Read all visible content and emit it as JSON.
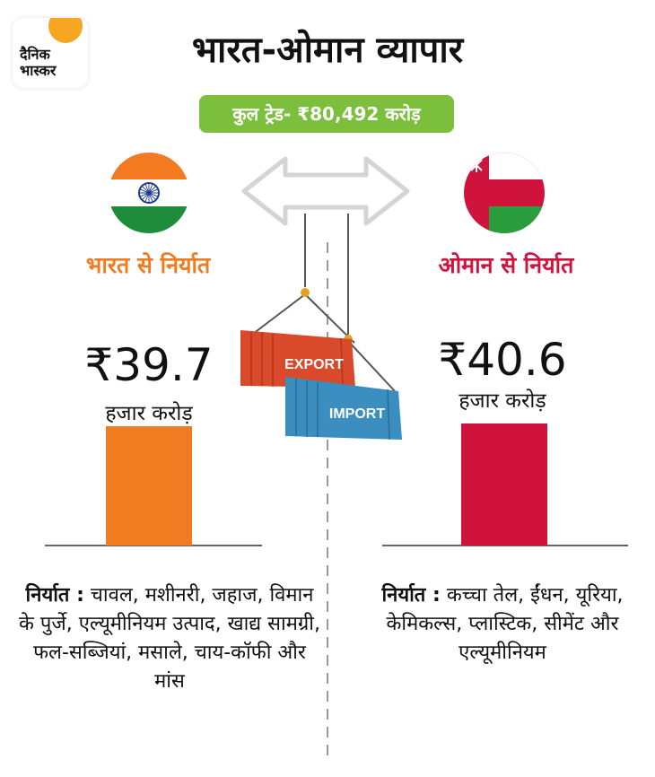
{
  "logo": {
    "text": "दैनिक\nभास्कर"
  },
  "header": {
    "title": "भारत-ओमान व्यापार"
  },
  "badge": {
    "text": "कुल ट्रेड- ₹80,492 करोड़"
  },
  "containers": {
    "export_label": "EXPORT",
    "import_label": "IMPORT"
  },
  "colors": {
    "india": "#f07c22",
    "oman": "#d0133d",
    "badge": "#7cbf3c"
  },
  "icons": {
    "india_flag": "india-flag-icon",
    "oman_flag": "oman-flag-icon",
    "arrow": "double-arrow-icon"
  },
  "chart_data": {
    "type": "bar",
    "categories": [
      "भारत से निर्यात",
      "ओमान से निर्यात"
    ],
    "values": [
      39.7,
      40.6
    ],
    "value_labels": [
      "₹39.7",
      "₹40.6"
    ],
    "unit": "हजार करोड़",
    "colors": [
      "#f07c22",
      "#d0133d"
    ],
    "ylim": [
      0,
      40.6
    ]
  },
  "india": {
    "export_label": "भारत से निर्यात",
    "value": "₹39.7",
    "unit": "हजार करोड़",
    "desc_prefix": "निर्यात :",
    "desc": "चावल, मशीनरी, जहाज, विमान के पुर्जे, एल्यूमीनियम उत्पाद, खाद्य सामग्री, फल-सब्जियां, मसाले, चाय-कॉफी और मांस"
  },
  "oman": {
    "export_label": "ओमान से निर्यात",
    "value": "₹40.6",
    "unit": "हजार करोड़",
    "desc_prefix": "निर्यात :",
    "desc": "कच्चा तेल, ईंधन, यूरिया, केमिकल्स, प्लास्टिक, सीमेंट और एल्यूमीनियम"
  }
}
